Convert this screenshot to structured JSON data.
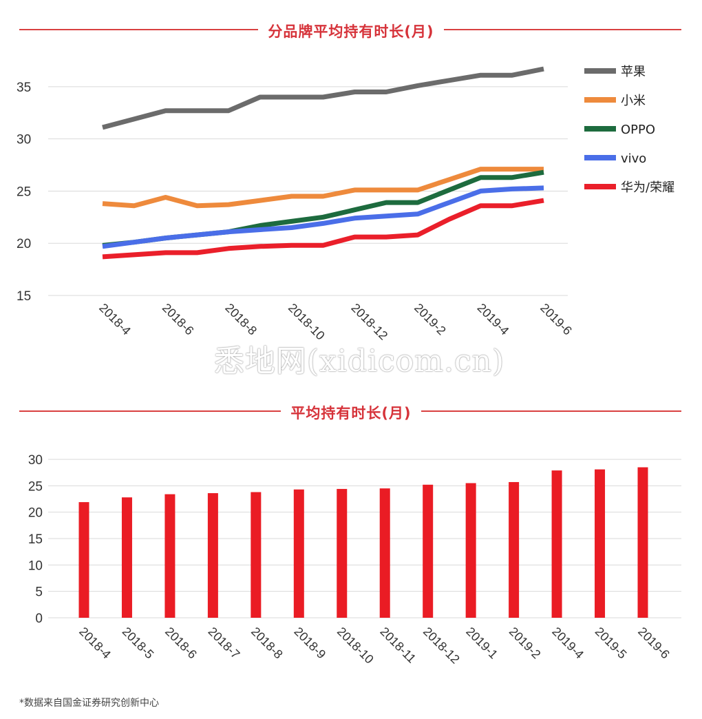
{
  "chart_data": [
    {
      "type": "line",
      "title": "分品牌平均持有时长(月)",
      "x": [
        "2018-4",
        "2018-5",
        "2018-6",
        "2018-7",
        "2018-8",
        "2018-9",
        "2018-10",
        "2018-11",
        "2018-12",
        "2019-1",
        "2019-2",
        "2019-3",
        "2019-4",
        "2019-5",
        "2019-6"
      ],
      "xticks": [
        "2018-4",
        "2018-6",
        "2018-8",
        "2018-10",
        "2018-12",
        "2019-2",
        "2019-4",
        "2019-6"
      ],
      "ylim": [
        15,
        37.5
      ],
      "yticks": [
        15,
        20,
        25,
        30,
        35
      ],
      "grid": true,
      "legend_position": "right",
      "series": [
        {
          "name": "苹果",
          "color": "#6b6b6b",
          "values": [
            31.1,
            31.9,
            32.7,
            32.7,
            32.7,
            34.0,
            34.0,
            34.0,
            34.5,
            34.5,
            35.1,
            35.6,
            36.1,
            36.1,
            36.7
          ]
        },
        {
          "name": "小米",
          "color": "#ee8a3c",
          "values": [
            23.8,
            23.6,
            24.4,
            23.6,
            23.7,
            24.1,
            24.5,
            24.5,
            25.1,
            25.1,
            25.1,
            26.1,
            27.1,
            27.1,
            27.1
          ]
        },
        {
          "name": "OPPO",
          "color": "#1d6b3e",
          "values": [
            19.8,
            20.1,
            20.5,
            20.8,
            21.1,
            21.7,
            22.1,
            22.5,
            23.2,
            23.9,
            23.9,
            25.1,
            26.3,
            26.3,
            26.8
          ]
        },
        {
          "name": "vivo",
          "color": "#4a6ee8",
          "values": [
            19.7,
            20.1,
            20.5,
            20.8,
            21.1,
            21.3,
            21.5,
            21.9,
            22.4,
            22.6,
            22.8,
            23.9,
            25.0,
            25.2,
            25.3
          ]
        },
        {
          "name": "华为/荣耀",
          "color": "#ea1f2a",
          "values": [
            18.7,
            18.9,
            19.1,
            19.1,
            19.5,
            19.7,
            19.8,
            19.8,
            20.6,
            20.6,
            20.8,
            22.3,
            23.6,
            23.6,
            24.1
          ]
        }
      ]
    },
    {
      "type": "bar",
      "title": "平均持有时长(月)",
      "categories": [
        "2018-4",
        "2018-5",
        "2018-6",
        "2018-7",
        "2018-8",
        "2018-9",
        "2018-10",
        "2018-11",
        "2018-12",
        "2019-1",
        "2019-2",
        "2019-4",
        "2019-5",
        "2019-6"
      ],
      "values": [
        21.9,
        22.8,
        23.4,
        23.6,
        23.8,
        24.3,
        24.4,
        24.5,
        25.2,
        25.5,
        25.7,
        27.9,
        28.1,
        28.5
      ],
      "ylim": [
        0,
        30
      ],
      "yticks": [
        0,
        5,
        10,
        15,
        20,
        25,
        30
      ],
      "grid": true,
      "color": "#ea1c24"
    }
  ],
  "watermark": "悉地网(xidicom.cn)",
  "footnote": "*数据来自国金证券研究创新中心"
}
